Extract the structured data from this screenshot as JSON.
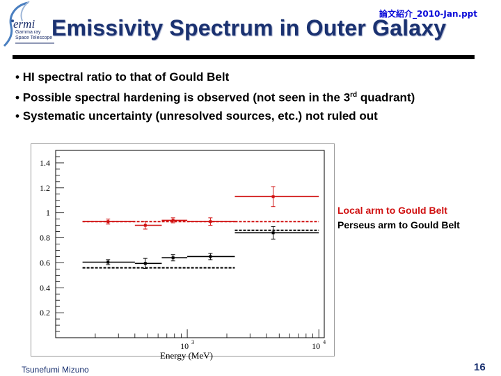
{
  "header": {
    "logo_text": "Gamma ray\nSpace Telescope",
    "file_tag": "論文紹介_2010-Jan.ppt",
    "title": "Emissivity Spectrum in Outer Galaxy"
  },
  "bullets": [
    {
      "text": "HI spectral ratio to that of Gould Belt"
    },
    {
      "pre": "Possible spectral hardening is observed (not seen in the 3",
      "sup": "rd",
      "post": " quadrant)"
    },
    {
      "text": "Systematic uncertainty (unresolved sources, etc.) not ruled out"
    }
  ],
  "legend": {
    "local": "Local arm to Gould Belt",
    "perseus": "Perseus arm to Gould Belt"
  },
  "colors": {
    "title": "#1a3170",
    "local": "#d01010",
    "perseus": "#000000",
    "file_tag": "#0a0ad8"
  },
  "chart_data": {
    "type": "scatter",
    "xlabel": "Energy (MeV)",
    "x_scale": "log",
    "xlim": [
      100,
      11000
    ],
    "ylim": [
      0,
      1.5
    ],
    "x_ticks": [
      {
        "value": 1000,
        "label": "10^3"
      },
      {
        "value": 10000,
        "label": "10^4"
      }
    ],
    "y_ticks": [
      0.2,
      0.4,
      0.6,
      0.8,
      1,
      1.2,
      1.4
    ],
    "series": [
      {
        "name": "Local arm to Gould Belt",
        "color": "#d01010",
        "points": [
          {
            "x": 250,
            "xlo": 160,
            "xhi": 400,
            "y": 0.93,
            "ylo": 0.91,
            "yhi": 0.95
          },
          {
            "x": 480,
            "xlo": 400,
            "xhi": 640,
            "y": 0.9,
            "ylo": 0.87,
            "yhi": 0.93
          },
          {
            "x": 780,
            "xlo": 640,
            "xhi": 1000,
            "y": 0.94,
            "ylo": 0.92,
            "yhi": 0.96
          },
          {
            "x": 1500,
            "xlo": 1000,
            "xhi": 2300,
            "y": 0.93,
            "ylo": 0.9,
            "yhi": 0.96
          },
          {
            "x": 4500,
            "xlo": 2300,
            "xhi": 10000,
            "y": 1.13,
            "ylo": 1.05,
            "yhi": 1.21
          }
        ],
        "model": {
          "segments": [
            {
              "x0": 160,
              "x1": 2300,
              "y": 0.93
            },
            {
              "x0": 2300,
              "x1": 10000,
              "y": 0.93
            }
          ]
        }
      },
      {
        "name": "Perseus arm to Gould Belt",
        "color": "#000000",
        "points": [
          {
            "x": 250,
            "xlo": 160,
            "xhi": 400,
            "y": 0.605,
            "ylo": 0.585,
            "yhi": 0.625
          },
          {
            "x": 480,
            "xlo": 400,
            "xhi": 640,
            "y": 0.595,
            "ylo": 0.555,
            "yhi": 0.635
          },
          {
            "x": 780,
            "xlo": 640,
            "xhi": 1000,
            "y": 0.64,
            "ylo": 0.615,
            "yhi": 0.665
          },
          {
            "x": 1500,
            "xlo": 1000,
            "xhi": 2300,
            "y": 0.65,
            "ylo": 0.625,
            "yhi": 0.675
          },
          {
            "x": 4500,
            "xlo": 2300,
            "xhi": 10000,
            "y": 0.84,
            "ylo": 0.79,
            "yhi": 0.89
          }
        ],
        "model": {
          "segments": [
            {
              "x0": 160,
              "x1": 2300,
              "y": 0.56
            },
            {
              "x0": 2300,
              "x1": 10000,
              "y": 0.86
            }
          ]
        }
      }
    ]
  },
  "footer": {
    "author": "Tsunefumi Mizuno",
    "page": "16"
  }
}
